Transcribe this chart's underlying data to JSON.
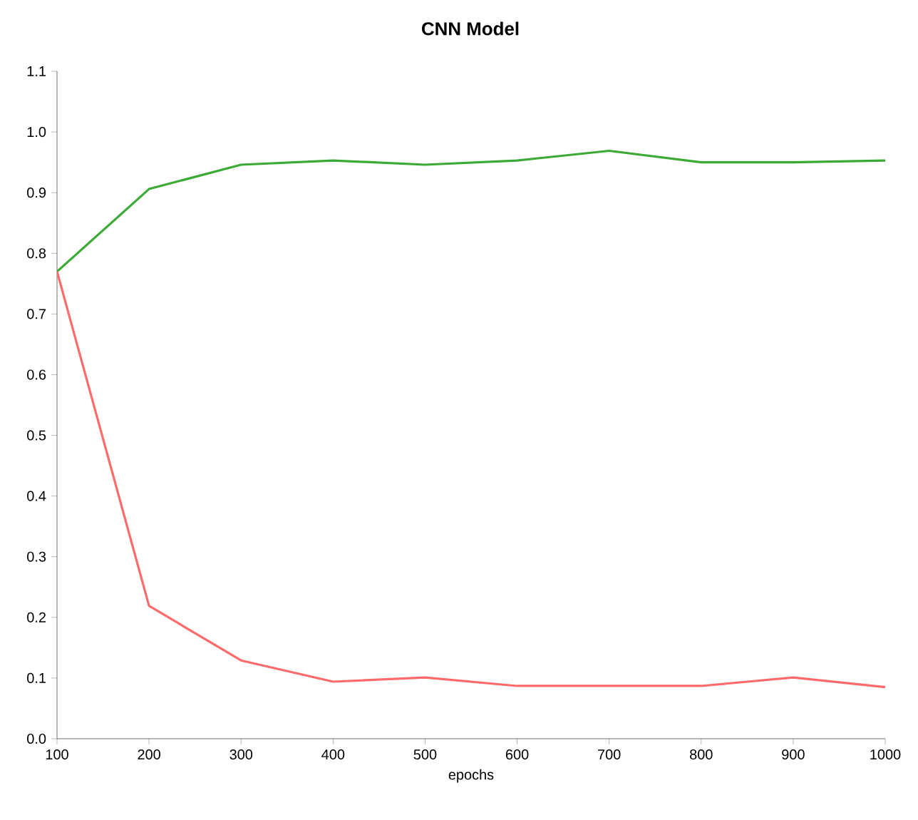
{
  "chart_data": {
    "type": "line",
    "title": "CNN Model",
    "xlabel": "epochs",
    "x": [
      100,
      200,
      300,
      400,
      500,
      600,
      700,
      800,
      900,
      1000
    ],
    "series": [
      {
        "color": "#3aaa35",
        "values": [
          0.77,
          0.906,
          0.946,
          0.953,
          0.946,
          0.953,
          0.969,
          0.95,
          0.95,
          0.953
        ]
      },
      {
        "color": "#ff6b6b",
        "values": [
          0.77,
          0.219,
          0.129,
          0.094,
          0.101,
          0.087,
          0.087,
          0.087,
          0.101,
          0.085
        ]
      }
    ],
    "xlim": [
      100,
      1000
    ],
    "ylim": [
      0,
      1.1
    ],
    "xticks": [
      100,
      200,
      300,
      400,
      500,
      600,
      700,
      800,
      900,
      1000
    ],
    "yticks": [
      {
        "value": 0,
        "label": "0.0"
      },
      {
        "value": 0.1,
        "label": "0.1"
      },
      {
        "value": 0.2,
        "label": "0.2"
      },
      {
        "value": 0.3,
        "label": "0.3"
      },
      {
        "value": 0.4,
        "label": "0.4"
      },
      {
        "value": 0.5,
        "label": "0.5"
      },
      {
        "value": 0.6,
        "label": "0.6"
      },
      {
        "value": 0.7,
        "label": "0.7"
      },
      {
        "value": 0.8,
        "label": "0.8"
      },
      {
        "value": 0.9,
        "label": "0.9"
      },
      {
        "value": 1.0,
        "label": "1.0"
      },
      {
        "value": 1.1,
        "label": "1.1"
      }
    ],
    "grid": false,
    "marker": "none",
    "line_style": "solid"
  }
}
